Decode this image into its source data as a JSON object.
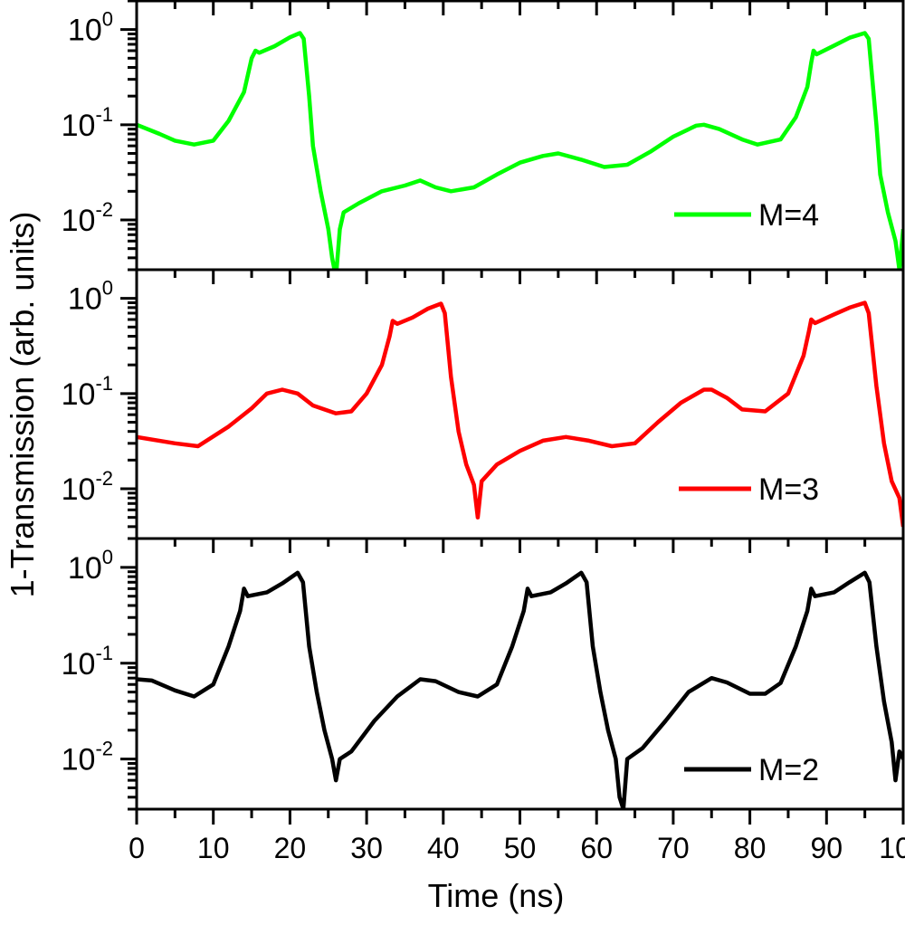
{
  "chart_data": {
    "type": "line",
    "layout": "three vertically stacked panels sharing x axis",
    "xlabel": "Time (ns)",
    "ylabel": "1-Transmission (arb. units)",
    "xlim": [
      0,
      100
    ],
    "x_ticks": [
      "0",
      "10",
      "20",
      "30",
      "40",
      "50",
      "60",
      "70",
      "80",
      "90",
      "100"
    ],
    "y_scale": "log",
    "ylim": [
      0.003,
      2
    ],
    "y_tick_labels": [
      {
        "base": "10",
        "exp": "0"
      },
      {
        "base": "10",
        "exp": "-1"
      },
      {
        "base": "10",
        "exp": "-2"
      }
    ],
    "grid": false,
    "legend_placement": "bottom-right of each panel",
    "panels": [
      {
        "name": "M=4",
        "color": "#00ff00",
        "points": [
          [
            0,
            0.1
          ],
          [
            3,
            0.08
          ],
          [
            5,
            0.068
          ],
          [
            7.5,
            0.062
          ],
          [
            10,
            0.068
          ],
          [
            12,
            0.11
          ],
          [
            14,
            0.22
          ],
          [
            15,
            0.5
          ],
          [
            15.5,
            0.6
          ],
          [
            16,
            0.57
          ],
          [
            18,
            0.67
          ],
          [
            20,
            0.83
          ],
          [
            21.3,
            0.92
          ],
          [
            21.8,
            0.8
          ],
          [
            22.5,
            0.2
          ],
          [
            23,
            0.06
          ],
          [
            24,
            0.02
          ],
          [
            25,
            0.008
          ],
          [
            25.5,
            0.004
          ],
          [
            26,
            0.0025
          ],
          [
            26.5,
            0.008
          ],
          [
            27,
            0.012
          ],
          [
            29,
            0.015
          ],
          [
            32,
            0.02
          ],
          [
            35,
            0.023
          ],
          [
            37,
            0.026
          ],
          [
            39,
            0.022
          ],
          [
            41,
            0.02
          ],
          [
            44,
            0.022
          ],
          [
            47,
            0.03
          ],
          [
            50,
            0.04
          ],
          [
            53,
            0.047
          ],
          [
            55,
            0.05
          ],
          [
            58,
            0.043
          ],
          [
            61,
            0.036
          ],
          [
            64,
            0.038
          ],
          [
            67,
            0.052
          ],
          [
            70,
            0.075
          ],
          [
            73,
            0.098
          ],
          [
            74,
            0.1
          ],
          [
            76,
            0.09
          ],
          [
            79,
            0.07
          ],
          [
            81,
            0.062
          ],
          [
            84,
            0.07
          ],
          [
            86,
            0.12
          ],
          [
            87.5,
            0.25
          ],
          [
            88,
            0.45
          ],
          [
            88.3,
            0.6
          ],
          [
            88.7,
            0.55
          ],
          [
            91,
            0.68
          ],
          [
            93,
            0.82
          ],
          [
            95,
            0.92
          ],
          [
            95.5,
            0.8
          ],
          [
            96.5,
            0.1
          ],
          [
            97,
            0.03
          ],
          [
            98,
            0.012
          ],
          [
            99,
            0.006
          ],
          [
            99.5,
            0.003
          ],
          [
            100,
            0.008
          ]
        ]
      },
      {
        "name": "M=3",
        "color": "#ff0000",
        "points": [
          [
            0,
            0.035
          ],
          [
            5,
            0.03
          ],
          [
            8,
            0.028
          ],
          [
            12,
            0.045
          ],
          [
            15,
            0.07
          ],
          [
            17,
            0.1
          ],
          [
            19,
            0.11
          ],
          [
            21,
            0.1
          ],
          [
            23,
            0.075
          ],
          [
            26,
            0.062
          ],
          [
            28,
            0.065
          ],
          [
            30,
            0.1
          ],
          [
            32,
            0.2
          ],
          [
            33,
            0.4
          ],
          [
            33.4,
            0.58
          ],
          [
            34,
            0.54
          ],
          [
            36,
            0.63
          ],
          [
            38,
            0.78
          ],
          [
            39.7,
            0.88
          ],
          [
            40.2,
            0.7
          ],
          [
            41,
            0.15
          ],
          [
            42,
            0.04
          ],
          [
            43,
            0.018
          ],
          [
            44,
            0.011
          ],
          [
            44.5,
            0.005
          ],
          [
            45,
            0.012
          ],
          [
            47,
            0.018
          ],
          [
            50,
            0.025
          ],
          [
            53,
            0.032
          ],
          [
            56,
            0.035
          ],
          [
            59,
            0.032
          ],
          [
            62,
            0.028
          ],
          [
            65,
            0.03
          ],
          [
            68,
            0.05
          ],
          [
            71,
            0.08
          ],
          [
            74,
            0.11
          ],
          [
            75,
            0.11
          ],
          [
            77,
            0.09
          ],
          [
            79,
            0.068
          ],
          [
            82,
            0.065
          ],
          [
            85,
            0.1
          ],
          [
            87,
            0.25
          ],
          [
            87.7,
            0.45
          ],
          [
            88,
            0.6
          ],
          [
            88.5,
            0.55
          ],
          [
            91,
            0.68
          ],
          [
            93,
            0.8
          ],
          [
            95,
            0.9
          ],
          [
            95.5,
            0.7
          ],
          [
            96.5,
            0.12
          ],
          [
            97.5,
            0.03
          ],
          [
            98.5,
            0.012
          ],
          [
            99.5,
            0.008
          ],
          [
            100,
            0.004
          ]
        ]
      },
      {
        "name": "M=2",
        "color": "#000000",
        "points": [
          [
            0,
            0.068
          ],
          [
            2,
            0.066
          ],
          [
            5,
            0.052
          ],
          [
            7.5,
            0.045
          ],
          [
            10,
            0.06
          ],
          [
            12,
            0.15
          ],
          [
            13.5,
            0.35
          ],
          [
            14,
            0.6
          ],
          [
            14.5,
            0.5
          ],
          [
            17,
            0.55
          ],
          [
            19,
            0.68
          ],
          [
            21,
            0.88
          ],
          [
            21.7,
            0.7
          ],
          [
            22.5,
            0.15
          ],
          [
            23.5,
            0.05
          ],
          [
            24.5,
            0.02
          ],
          [
            25.5,
            0.01
          ],
          [
            26,
            0.006
          ],
          [
            26.5,
            0.01
          ],
          [
            28,
            0.012
          ],
          [
            31,
            0.025
          ],
          [
            34,
            0.045
          ],
          [
            37,
            0.068
          ],
          [
            39,
            0.065
          ],
          [
            42,
            0.05
          ],
          [
            44.5,
            0.045
          ],
          [
            47,
            0.06
          ],
          [
            49,
            0.15
          ],
          [
            50.5,
            0.35
          ],
          [
            51,
            0.6
          ],
          [
            51.5,
            0.5
          ],
          [
            54,
            0.55
          ],
          [
            56,
            0.68
          ],
          [
            58,
            0.88
          ],
          [
            58.7,
            0.7
          ],
          [
            59.5,
            0.15
          ],
          [
            60.5,
            0.05
          ],
          [
            61.5,
            0.02
          ],
          [
            62.5,
            0.01
          ],
          [
            63,
            0.004
          ],
          [
            63.5,
            0.003
          ],
          [
            64,
            0.01
          ],
          [
            66,
            0.013
          ],
          [
            69,
            0.025
          ],
          [
            72,
            0.05
          ],
          [
            75,
            0.07
          ],
          [
            77,
            0.063
          ],
          [
            80,
            0.048
          ],
          [
            82,
            0.048
          ],
          [
            84,
            0.062
          ],
          [
            86,
            0.15
          ],
          [
            87.5,
            0.35
          ],
          [
            88,
            0.6
          ],
          [
            88.5,
            0.5
          ],
          [
            91,
            0.55
          ],
          [
            93,
            0.7
          ],
          [
            95,
            0.88
          ],
          [
            95.6,
            0.7
          ],
          [
            96.5,
            0.15
          ],
          [
            97.5,
            0.04
          ],
          [
            98.5,
            0.015
          ],
          [
            99,
            0.006
          ],
          [
            99.5,
            0.012
          ],
          [
            100,
            0.01
          ]
        ]
      }
    ]
  }
}
